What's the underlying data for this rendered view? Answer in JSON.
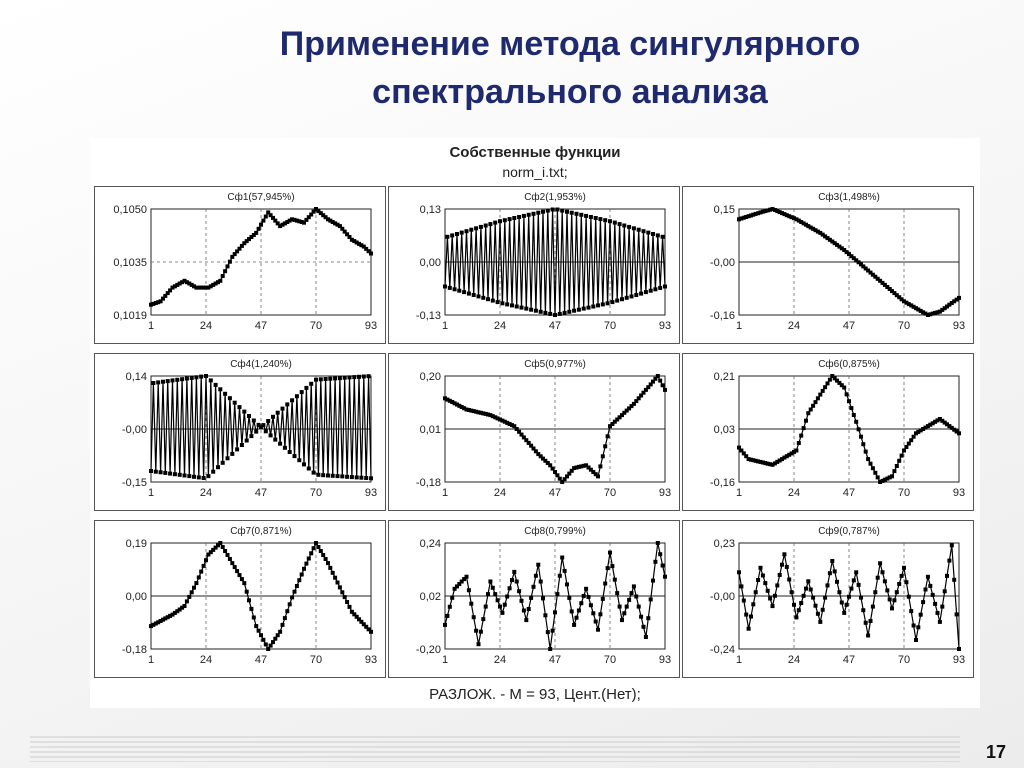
{
  "slide": {
    "title_line1": "Применение метода сингулярного",
    "title_line2": "спектрального анализа",
    "page_number": "17"
  },
  "panel": {
    "title": "Собственные функции",
    "subtitle": "norm_i.txt;",
    "footer": "РАЗЛОЖ. - M = 93, Цент.(Нет);"
  },
  "chart_data": [
    {
      "type": "line",
      "title": "Сф1(57,945%)",
      "x_ticks": [
        "1",
        "24",
        "47",
        "70",
        "93"
      ],
      "y_ticks": [
        "0,1050",
        "0,1035",
        "0,1019"
      ],
      "ylim": [
        0.1019,
        0.105
      ],
      "xlim": [
        1,
        93
      ],
      "zero_line": false,
      "x": [
        1,
        5,
        10,
        15,
        20,
        25,
        30,
        35,
        40,
        45,
        50,
        55,
        60,
        65,
        70,
        75,
        80,
        85,
        90,
        93
      ],
      "y": [
        0.1022,
        0.1023,
        0.1027,
        0.1029,
        0.1027,
        0.1027,
        0.1029,
        0.1036,
        0.104,
        0.1043,
        0.1049,
        0.1045,
        0.1047,
        0.1046,
        0.105,
        0.1047,
        0.1045,
        0.1041,
        0.1039,
        0.1037
      ]
    },
    {
      "type": "line",
      "title": "Сф2(1,953%)",
      "x_ticks": [
        "1",
        "24",
        "47",
        "70",
        "93"
      ],
      "y_ticks": [
        "0,13",
        "0,00",
        "-0,13"
      ],
      "ylim": [
        -0.13,
        0.13
      ],
      "xlim": [
        1,
        93
      ],
      "zero_line": true,
      "pattern": "alternating",
      "x": [
        1,
        24,
        47,
        70,
        93
      ],
      "y": [
        0.06,
        0.1,
        0.13,
        0.1,
        0.06
      ]
    },
    {
      "type": "line",
      "title": "Сф3(1,498%)",
      "x_ticks": [
        "1",
        "24",
        "47",
        "70",
        "93"
      ],
      "y_ticks": [
        "0,15",
        "-0,00",
        "-0,16"
      ],
      "ylim": [
        -0.16,
        0.15
      ],
      "xlim": [
        1,
        93
      ],
      "zero_line": true,
      "x": [
        1,
        10,
        15,
        25,
        35,
        45,
        50,
        60,
        70,
        80,
        85,
        93
      ],
      "y": [
        0.12,
        0.14,
        0.15,
        0.12,
        0.08,
        0.03,
        0.0,
        -0.06,
        -0.12,
        -0.16,
        -0.15,
        -0.11
      ]
    },
    {
      "type": "line",
      "title": "Сф4(1,240%)",
      "x_ticks": [
        "1",
        "24",
        "47",
        "70",
        "93"
      ],
      "y_ticks": [
        "0,14",
        "-0,00",
        "-0,15"
      ],
      "ylim": [
        -0.15,
        0.14
      ],
      "xlim": [
        1,
        93
      ],
      "zero_line": true,
      "pattern": "alternating",
      "x": [
        1,
        24,
        47,
        70,
        93
      ],
      "y": [
        0.12,
        0.14,
        0.0,
        0.13,
        0.14
      ]
    },
    {
      "type": "line",
      "title": "Сф5(0,977%)",
      "x_ticks": [
        "1",
        "24",
        "47",
        "70",
        "93"
      ],
      "y_ticks": [
        "0,20",
        "0,01",
        "-0,18"
      ],
      "ylim": [
        -0.18,
        0.2
      ],
      "xlim": [
        1,
        93
      ],
      "zero_line": true,
      "x": [
        1,
        10,
        20,
        25,
        30,
        40,
        45,
        50,
        55,
        60,
        65,
        70,
        80,
        90,
        93
      ],
      "y": [
        0.12,
        0.08,
        0.06,
        0.04,
        0.02,
        -0.08,
        -0.12,
        -0.18,
        -0.13,
        -0.12,
        -0.16,
        0.02,
        0.1,
        0.2,
        0.15
      ]
    },
    {
      "type": "line",
      "title": "Сф6(0,875%)",
      "x_ticks": [
        "1",
        "24",
        "47",
        "70",
        "93"
      ],
      "y_ticks": [
        "0,21",
        "0,03",
        "-0,16"
      ],
      "ylim": [
        -0.16,
        0.21
      ],
      "xlim": [
        1,
        93
      ],
      "zero_line": true,
      "x": [
        1,
        5,
        15,
        25,
        30,
        40,
        45,
        50,
        55,
        60,
        65,
        70,
        75,
        85,
        93
      ],
      "y": [
        -0.04,
        -0.08,
        -0.1,
        -0.05,
        0.08,
        0.21,
        0.17,
        0.05,
        -0.08,
        -0.16,
        -0.14,
        -0.05,
        0.01,
        0.06,
        0.01
      ]
    },
    {
      "type": "line",
      "title": "Сф7(0,871%)",
      "x_ticks": [
        "1",
        "24",
        "47",
        "70",
        "93"
      ],
      "y_ticks": [
        "0,19",
        "0,00",
        "-0,18"
      ],
      "ylim": [
        -0.18,
        0.19
      ],
      "xlim": [
        1,
        93
      ],
      "zero_line": true,
      "x": [
        1,
        10,
        15,
        20,
        25,
        30,
        35,
        40,
        45,
        50,
        55,
        60,
        65,
        70,
        75,
        85,
        93
      ],
      "y": [
        -0.1,
        -0.06,
        -0.03,
        0.05,
        0.15,
        0.19,
        0.12,
        0.05,
        -0.1,
        -0.18,
        -0.12,
        0.0,
        0.1,
        0.19,
        0.12,
        -0.05,
        -0.12
      ]
    },
    {
      "type": "line",
      "title": "Сф8(0,799%)",
      "x_ticks": [
        "1",
        "24",
        "47",
        "70",
        "93"
      ],
      "y_ticks": [
        "0,24",
        "0,02",
        "-0,20"
      ],
      "ylim": [
        -0.2,
        0.24
      ],
      "xlim": [
        1,
        93
      ],
      "zero_line": true,
      "x": [
        1,
        5,
        10,
        15,
        20,
        25,
        30,
        35,
        40,
        45,
        50,
        55,
        60,
        65,
        70,
        75,
        80,
        85,
        90,
        93
      ],
      "y": [
        -0.1,
        0.05,
        0.1,
        -0.18,
        0.08,
        -0.05,
        0.12,
        -0.08,
        0.15,
        -0.2,
        0.18,
        -0.1,
        0.05,
        -0.12,
        0.2,
        -0.08,
        0.06,
        -0.15,
        0.24,
        0.1
      ]
    },
    {
      "type": "line",
      "title": "Сф9(0,787%)",
      "x_ticks": [
        "1",
        "24",
        "47",
        "70",
        "93"
      ],
      "y_ticks": [
        "0,23",
        "-0,00",
        "-0,24"
      ],
      "ylim": [
        -0.24,
        0.23
      ],
      "xlim": [
        1,
        93
      ],
      "zero_line": true,
      "x": [
        1,
        5,
        10,
        15,
        20,
        25,
        30,
        35,
        40,
        45,
        50,
        55,
        60,
        65,
        70,
        75,
        80,
        85,
        90,
        93
      ],
      "y": [
        0.1,
        -0.15,
        0.12,
        -0.05,
        0.18,
        -0.1,
        0.06,
        -0.12,
        0.15,
        -0.08,
        0.1,
        -0.18,
        0.14,
        -0.06,
        0.12,
        -0.2,
        0.08,
        -0.12,
        0.22,
        -0.24
      ]
    }
  ]
}
